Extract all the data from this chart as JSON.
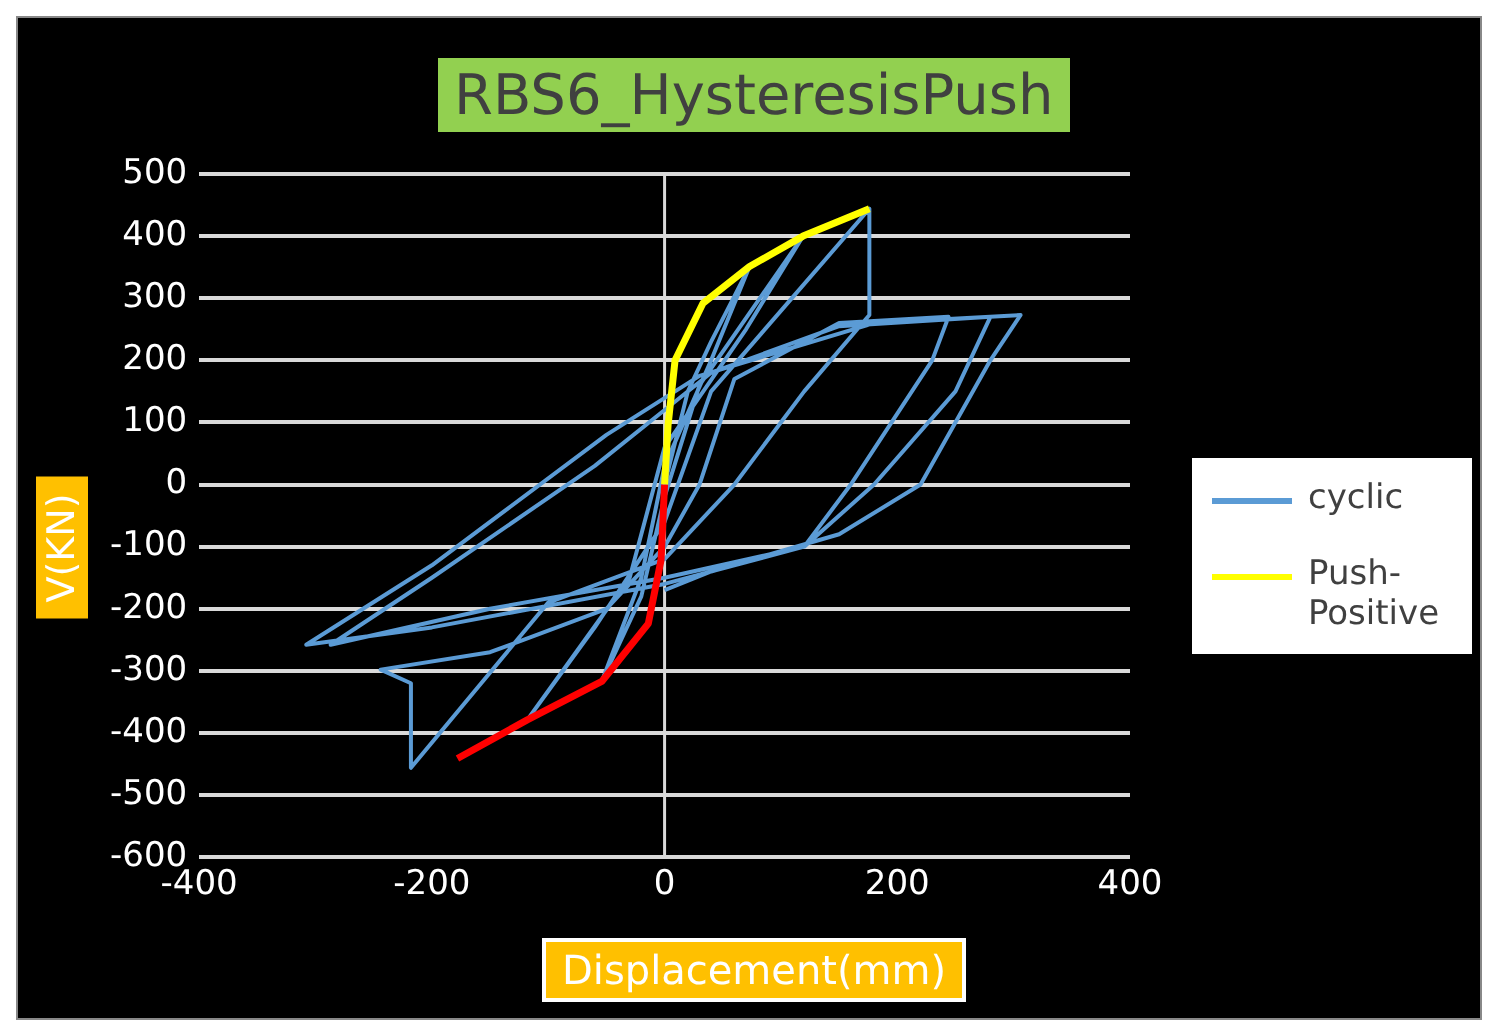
{
  "chart_data": {
    "type": "line",
    "title": "RBS6_HysteresisPush",
    "xlabel": "Displacement(mm)",
    "ylabel": "V(KN)",
    "xlim": [
      -400,
      400
    ],
    "xticks": [
      -400,
      -200,
      0,
      200,
      400
    ],
    "ylim": [
      -600,
      500
    ],
    "yticks": [
      -600,
      -500,
      -400,
      -300,
      -200,
      -100,
      0,
      100,
      200,
      300,
      400,
      500
    ],
    "grid": "y",
    "legend": "right",
    "marker": "none",
    "line_style": "solid",
    "series": [
      {
        "name": "cyclic",
        "color": "#5b9bd5",
        "x": [
          0,
          20,
          40,
          73,
          40,
          0,
          -20,
          -54,
          -20,
          0,
          30,
          119,
          70,
          0,
          -30,
          -118,
          -60,
          0,
          40,
          176,
          176,
          120,
          60,
          0,
          -100,
          -218,
          -218,
          -244,
          -150,
          -50,
          0,
          30,
          60,
          150,
          244,
          230,
          160,
          120,
          0,
          -150,
          -287,
          -200,
          -60,
          0,
          40,
          150,
          280,
          250,
          180,
          120,
          0,
          -200,
          -308,
          -200,
          -50,
          30,
          180,
          306,
          280,
          220,
          150,
          40,
          0
        ],
        "values": [
          0,
          150,
          230,
          351,
          200,
          30,
          -150,
          -317,
          -180,
          -20,
          160,
          400,
          250,
          60,
          -150,
          -379,
          -230,
          -60,
          150,
          444,
          273,
          150,
          0,
          -120,
          -190,
          -456,
          -320,
          -298,
          -270,
          -200,
          -100,
          0,
          170,
          260,
          270,
          200,
          0,
          -100,
          -150,
          -200,
          -258,
          -150,
          30,
          120,
          180,
          255,
          270,
          150,
          0,
          -100,
          -160,
          -230,
          -258,
          -130,
          80,
          175,
          260,
          273,
          200,
          0,
          -80,
          -140,
          -170
        ]
      },
      {
        "name": "Push-Positive",
        "color": "#ffff00",
        "x": [
          0,
          3,
          9,
          33,
          73,
          119,
          176
        ],
        "values": [
          0,
          96,
          200,
          292,
          351,
          400,
          444
        ]
      },
      {
        "color": "#ff0000",
        "x": [
          0,
          -3,
          -14,
          -54,
          -118,
          -178
        ],
        "values": [
          0,
          -121,
          -224,
          -317,
          -379,
          -441
        ]
      }
    ]
  }
}
